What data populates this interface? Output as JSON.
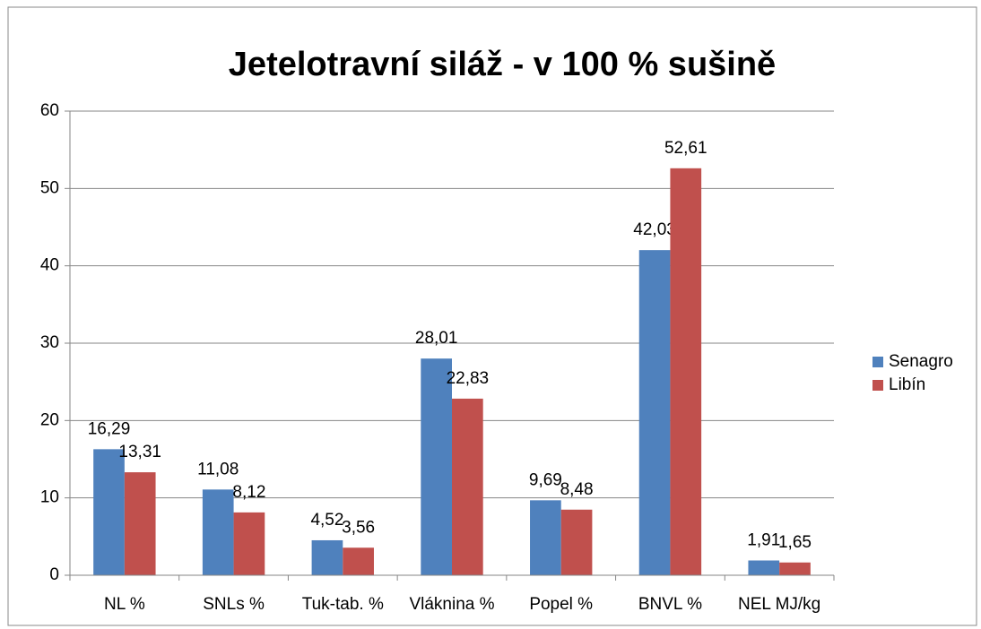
{
  "chart_data": {
    "type": "bar",
    "title": "Jetelotravní siláž - v 100 % sušině",
    "categories": [
      "NL %",
      "SNLs %",
      "Tuk-tab. %",
      "Vláknina %",
      "Popel %",
      "BNVL %",
      "NEL MJ/kg"
    ],
    "series": [
      {
        "name": "Senagro",
        "color": "#4f81bd",
        "values": [
          16.29,
          11.08,
          4.52,
          28.01,
          9.69,
          42.03,
          1.91
        ],
        "value_labels": [
          "16,29",
          "11,08",
          "4,52",
          "28,01",
          "9,69",
          "42,03",
          "1,91"
        ]
      },
      {
        "name": "Libín",
        "color": "#c0504d",
        "values": [
          13.31,
          8.12,
          3.56,
          22.83,
          8.48,
          52.61,
          1.65
        ],
        "value_labels": [
          "13,31",
          "8,12",
          "3,56",
          "22,83",
          "8,48",
          "52,61",
          "1,65"
        ]
      }
    ],
    "ylim": [
      0,
      60
    ],
    "yticks": [
      0,
      10,
      20,
      30,
      40,
      50,
      60
    ],
    "grid": true,
    "legend": "right"
  }
}
